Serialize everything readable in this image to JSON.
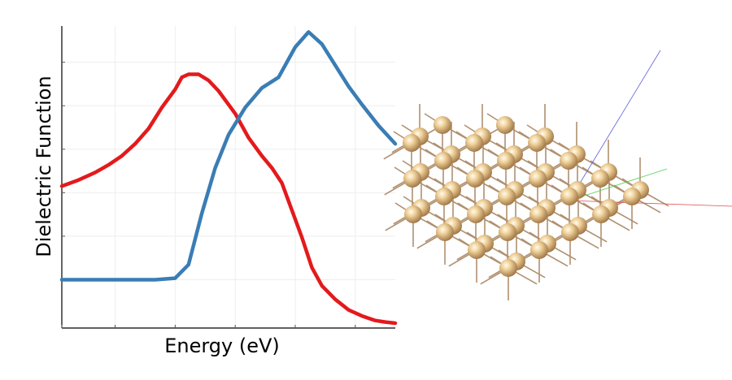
{
  "chart_data": {
    "type": "line",
    "title": "",
    "xlabel": "Energy (eV)",
    "ylabel": "Dielectric Function",
    "xlim": [
      0,
      100
    ],
    "ylim": [
      0,
      100
    ],
    "grid": true,
    "ticks_labeled": false,
    "series": [
      {
        "color": "#e31a1c",
        "x": [
          0,
          5,
          10,
          14,
          18,
          22,
          26,
          30,
          34,
          36,
          38,
          41,
          44,
          47,
          52,
          56,
          60,
          63,
          66,
          69,
          72,
          75,
          78,
          82,
          86,
          90,
          94,
          97,
          100
        ],
        "y": [
          47,
          49,
          51.5,
          54,
          57,
          61,
          66,
          73,
          79,
          83,
          84,
          84,
          82,
          78.5,
          71,
          63,
          57,
          53,
          48,
          39,
          30,
          20,
          14,
          9.5,
          6,
          4,
          2.5,
          2,
          1.6
        ]
      },
      {
        "color": "#3a7db5",
        "x": [
          0,
          10,
          20,
          28,
          34,
          38,
          42,
          46,
          50,
          55,
          60,
          65,
          70,
          74,
          78,
          82,
          86,
          90,
          95,
          100
        ],
        "y": [
          16,
          16,
          16,
          16,
          16.5,
          21,
          38,
          53,
          64,
          73,
          79.5,
          83,
          93,
          98,
          94,
          87,
          80,
          74,
          67,
          61
        ]
      }
    ]
  },
  "structure_view": {
    "description_colors": {
      "atom": "#e8c48a",
      "bond": "#b09070",
      "axis_x": "#e05050",
      "axis_y": "#50d050",
      "axis_z": "#6060e0"
    }
  }
}
